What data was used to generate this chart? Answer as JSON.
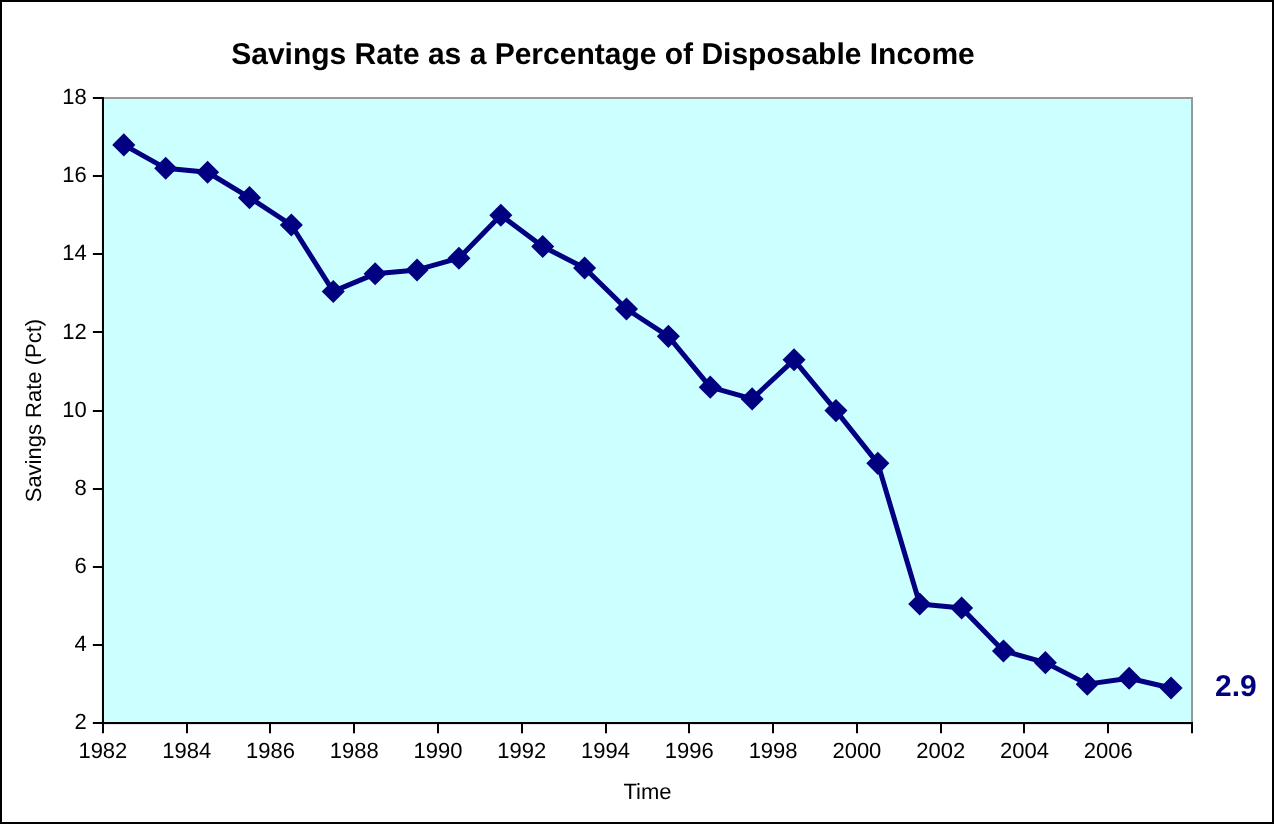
{
  "chart_data": {
    "type": "line",
    "title": "Savings Rate as a Percentage of Disposable Income",
    "xlabel": "Time",
    "ylabel": "Savings Rate (Pct)",
    "x": [
      1982.5,
      1983.5,
      1984.5,
      1985.5,
      1986.5,
      1987.5,
      1988.5,
      1989.5,
      1990.5,
      1991.5,
      1992.5,
      1993.5,
      1994.5,
      1995.5,
      1996.5,
      1997.5,
      1998.5,
      1999.5,
      2000.5,
      2001.5,
      2002.5,
      2003.5,
      2004.5,
      2005.5,
      2006.5,
      2007.5
    ],
    "series": [
      {
        "color": "#000080",
        "values": [
          16.8,
          16.2,
          16.1,
          15.45,
          14.75,
          13.05,
          13.5,
          13.6,
          13.9,
          15.0,
          14.2,
          13.65,
          12.6,
          11.9,
          10.6,
          10.3,
          11.3,
          10.0,
          8.65,
          5.05,
          4.95,
          3.85,
          3.55,
          3.0,
          3.15,
          2.9
        ]
      }
    ],
    "xlim": [
      1982,
      2008
    ],
    "xticks": [
      1982,
      1984,
      1986,
      1988,
      1990,
      1992,
      1994,
      1996,
      1998,
      2000,
      2002,
      2004,
      2006,
      {
        "value": 2008,
        "label": null
      }
    ],
    "ylim": [
      2,
      18
    ],
    "yticks": [
      2,
      4,
      6,
      8,
      10,
      12,
      14,
      16,
      18
    ],
    "annotations": [
      {
        "text": "2.9",
        "x": 2007.5,
        "y": 2.9
      }
    ],
    "grid": false,
    "legend": false,
    "marker": "diamond",
    "line_style": "solid"
  }
}
